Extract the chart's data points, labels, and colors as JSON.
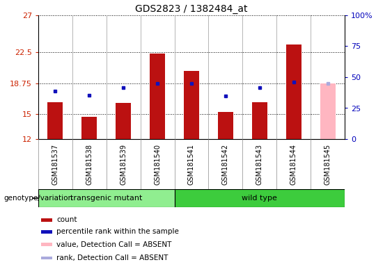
{
  "title": "GDS2823 / 1382484_at",
  "samples": [
    "GSM181537",
    "GSM181538",
    "GSM181539",
    "GSM181540",
    "GSM181541",
    "GSM181542",
    "GSM181543",
    "GSM181544",
    "GSM181545"
  ],
  "count_values": [
    16.5,
    14.7,
    16.4,
    22.4,
    20.3,
    15.3,
    16.5,
    23.5,
    18.75
  ],
  "percentile_rank": [
    17.8,
    17.3,
    18.2,
    18.75,
    18.75,
    17.2,
    18.2,
    18.9,
    null
  ],
  "absent_value": [
    null,
    null,
    null,
    null,
    null,
    null,
    null,
    null,
    18.75
  ],
  "absent_rank": [
    null,
    null,
    null,
    null,
    null,
    null,
    null,
    null,
    18.75
  ],
  "is_absent": [
    false,
    false,
    false,
    false,
    false,
    false,
    false,
    false,
    true
  ],
  "y_min": 12,
  "y_max": 27,
  "y_ticks": [
    12,
    15,
    18.75,
    22.5,
    27
  ],
  "y_tick_labels": [
    "12",
    "15",
    "18.75",
    "22.5",
    "27"
  ],
  "right_y_ticks_pct": [
    0,
    25,
    50,
    75,
    100
  ],
  "right_y_tick_labels": [
    "0",
    "25",
    "50",
    "75",
    "100%"
  ],
  "groups": [
    {
      "label": "transgenic mutant",
      "start": 0,
      "end": 3,
      "color": "#90EE90"
    },
    {
      "label": "wild type",
      "start": 4,
      "end": 8,
      "color": "#3DCC3D"
    }
  ],
  "group_label": "genotype/variation",
  "bar_color": "#BB1111",
  "bar_absent_color": "#FFB6C1",
  "rank_color": "#1111BB",
  "rank_absent_color": "#AAAADD",
  "bg_color": "#FFFFFF",
  "xtick_bg": "#C8C8C8",
  "tick_label_color_left": "#CC2200",
  "tick_label_color_right": "#0000BB",
  "bar_width": 0.45,
  "legend_items": [
    {
      "label": "count",
      "color": "#BB1111"
    },
    {
      "label": "percentile rank within the sample",
      "color": "#1111BB"
    },
    {
      "label": "value, Detection Call = ABSENT",
      "color": "#FFB6C1"
    },
    {
      "label": "rank, Detection Call = ABSENT",
      "color": "#AAAADD"
    }
  ]
}
